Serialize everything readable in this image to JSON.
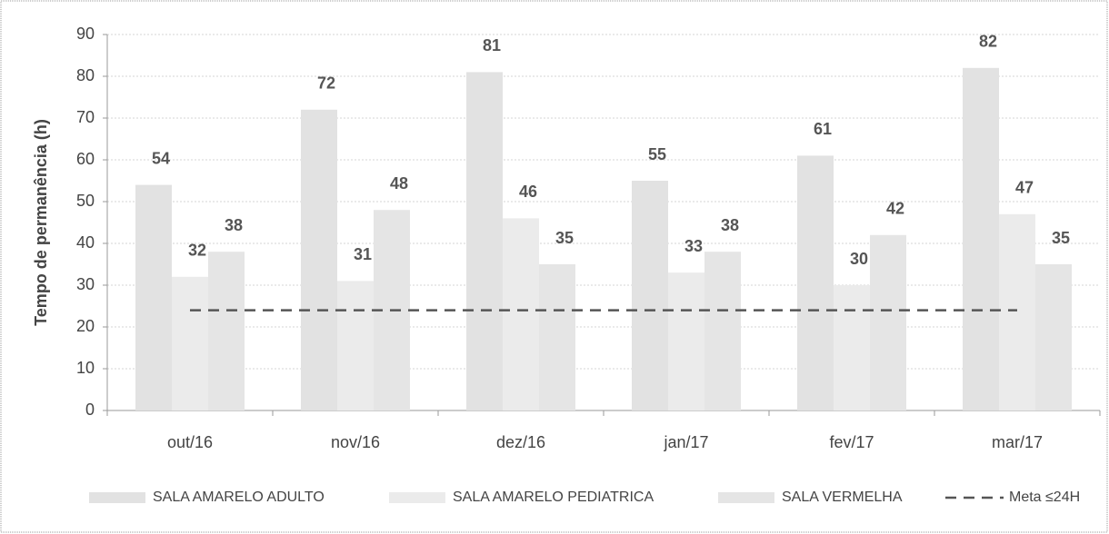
{
  "chart_data": {
    "type": "bar",
    "y_label": "Tempo de permanência (h)",
    "categories": [
      "out/16",
      "nov/16",
      "dez/16",
      "jan/17",
      "fev/17",
      "mar/17"
    ],
    "series": [
      {
        "name": "SALA AMARELO ADULTO",
        "color": "#e2e2e2",
        "values": [
          54,
          72,
          81,
          55,
          61,
          82
        ]
      },
      {
        "name": "SALA AMARELO PEDIATRICA",
        "color": "#ebebeb",
        "values": [
          32,
          31,
          46,
          33,
          30,
          47
        ]
      },
      {
        "name": "SALA VERMELHA",
        "color": "#e5e5e5",
        "values": [
          38,
          48,
          35,
          38,
          42,
          35
        ]
      },
      {
        "name": "Meta ≤24H",
        "type": "line",
        "dashed": true,
        "color": "#555555",
        "values": [
          24,
          24,
          24,
          24,
          24,
          24
        ]
      }
    ],
    "ylim": [
      0,
      90
    ],
    "yticks": [
      0,
      10,
      20,
      30,
      40,
      50,
      60,
      70,
      80,
      90
    ],
    "grid": true,
    "legend": "bottom"
  }
}
